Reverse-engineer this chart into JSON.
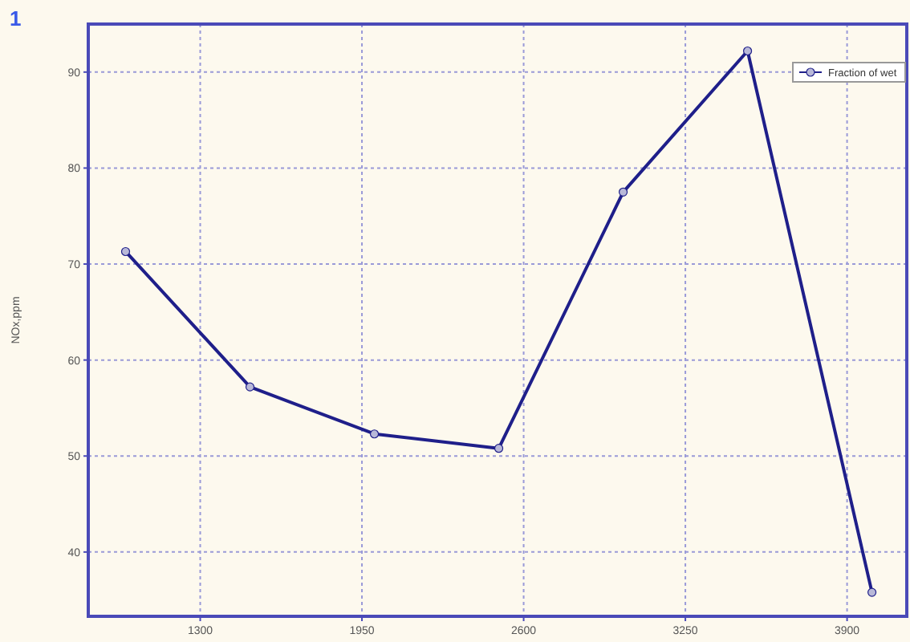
{
  "chart_data": {
    "type": "line",
    "ylabel": "NOx,ppm",
    "annotations": [
      "1"
    ],
    "x": [
      1000,
      1500,
      2000,
      2500,
      3000,
      3500,
      4000
    ],
    "series": [
      {
        "name": "Fraction of wet",
        "color": "#1f1f8a",
        "values": [
          71.3,
          57.2,
          52.3,
          50.8,
          77.5,
          92.2,
          35.8
        ]
      }
    ],
    "xlim": [
      850,
      4140
    ],
    "xticks": [
      1300,
      1950,
      2600,
      3250,
      3900
    ],
    "ylim": [
      33.3,
      95
    ],
    "yticks": [
      40,
      50,
      60,
      70,
      80,
      90
    ],
    "grid": true,
    "legend": "top right",
    "marker": "circle",
    "line_style": "solid"
  }
}
